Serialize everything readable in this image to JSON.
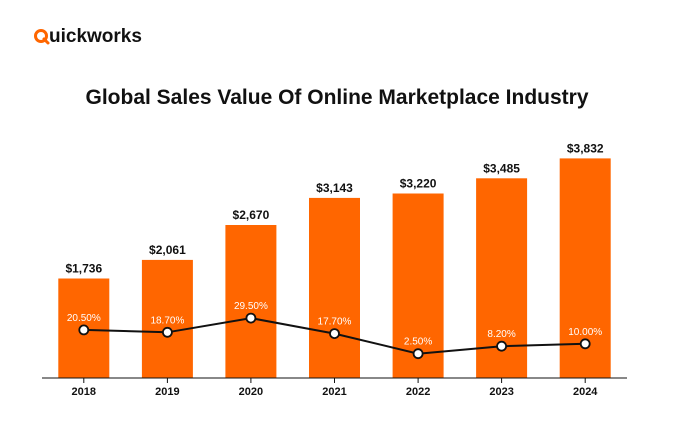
{
  "brand": {
    "logo_text": "uickworks",
    "accent": "#FF6600"
  },
  "chart_data": {
    "type": "bar",
    "title": "Global Sales Value Of Online Marketplace Industry",
    "categories": [
      "2018",
      "2019",
      "2020",
      "2021",
      "2022",
      "2023",
      "2024"
    ],
    "values": [
      1736,
      2061,
      2670,
      3143,
      3220,
      3485,
      3832
    ],
    "value_labels": [
      "$1,736",
      "$2,061",
      "$2,670",
      "$3,143",
      "$3,220",
      "$3,485",
      "$3,832"
    ],
    "line_series": {
      "values": [
        20.5,
        18.7,
        29.5,
        17.7,
        2.5,
        8.2,
        10.0
      ],
      "labels": [
        "20.50%",
        "18.70%",
        "29.50%",
        "17.70%",
        "2.50%",
        "8.20%",
        "10.00%"
      ]
    },
    "ylim": [
      0,
      4000
    ],
    "line_ylim": [
      0,
      100
    ],
    "grid": false,
    "bar_color": "#FF6600",
    "line_color": "#111111"
  }
}
